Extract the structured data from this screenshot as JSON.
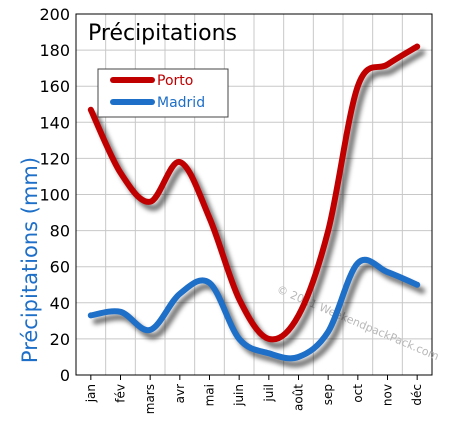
{
  "chart_data": {
    "type": "line",
    "title": "Précipitations",
    "ylabel": "Précipitations (mm)",
    "xlabel": "",
    "ylim": [
      0,
      200
    ],
    "yticks": [
      0,
      20,
      40,
      60,
      80,
      100,
      120,
      140,
      160,
      180,
      200
    ],
    "categories": [
      "jan",
      "fév",
      "mars",
      "avr",
      "mai",
      "juin",
      "juil",
      "août",
      "sep",
      "oct",
      "nov",
      "déc"
    ],
    "series": [
      {
        "name": "Porto",
        "color": "#c00000",
        "values": [
          147,
          112,
          96,
          118,
          87,
          42,
          20,
          33,
          80,
          160,
          172,
          182
        ]
      },
      {
        "name": "Madrid",
        "color": "#1e6fc8",
        "values": [
          33,
          35,
          25,
          45,
          51,
          20,
          12,
          10,
          24,
          62,
          57,
          50
        ]
      }
    ],
    "grid": true,
    "legend_position": "top-left",
    "watermark": "© 2011 WeekendpackPack.com"
  }
}
